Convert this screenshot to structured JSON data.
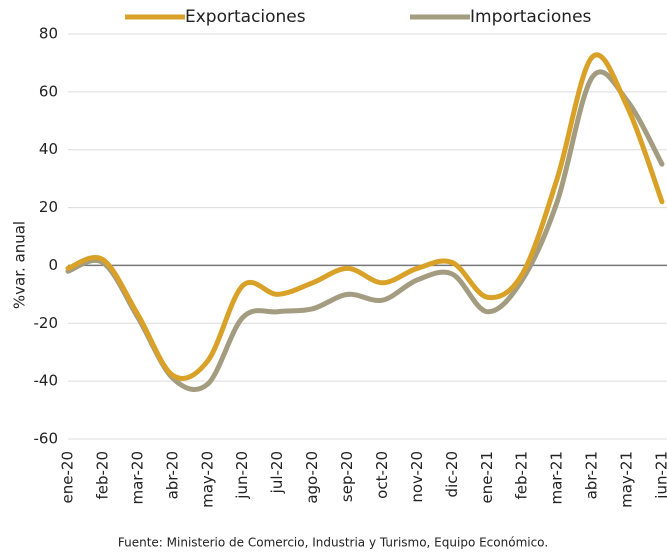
{
  "chart_data": {
    "type": "line",
    "ylabel": "%var. anual",
    "source": "Fuente: Ministerio de Comercio, Industria y Turismo, Equipo Económico.",
    "categories": [
      "ene-20",
      "feb-20",
      "mar-20",
      "abr-20",
      "may-20",
      "jun-20",
      "jul-20",
      "ago-20",
      "sep-20",
      "oct-20",
      "nov-20",
      "dic-20",
      "ene-21",
      "feb-21",
      "mar-21",
      "abr-21",
      "may-21",
      "jun-21"
    ],
    "series": [
      {
        "name": "Exportaciones",
        "color": "#d9a127",
        "values": [
          -1,
          2,
          -17,
          -38,
          -33,
          -7,
          -10,
          -6,
          -1,
          -6,
          -1,
          1,
          -11,
          -3,
          30,
          72,
          55,
          22
        ]
      },
      {
        "name": "Importaciones",
        "color": "#a39c80",
        "values": [
          -2,
          1,
          -18,
          -39,
          -41,
          -18,
          -16,
          -15,
          -10,
          -12,
          -5,
          -3,
          -16,
          -5,
          22,
          65,
          57,
          35
        ]
      }
    ],
    "ylim": [
      -60,
      80
    ],
    "yticks": [
      -60,
      -40,
      -20,
      0,
      20,
      40,
      60,
      80
    ],
    "grid": true
  }
}
